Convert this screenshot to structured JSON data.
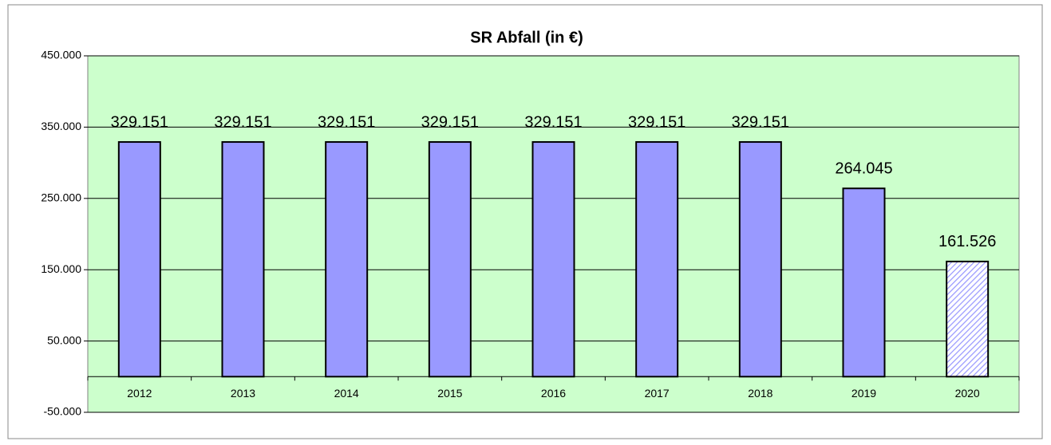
{
  "chart_data": {
    "type": "bar",
    "title": "SR Abfall  (in €)",
    "categories": [
      "2012",
      "2013",
      "2014",
      "2015",
      "2016",
      "2017",
      "2018",
      "2019",
      "2020"
    ],
    "values": [
      329151,
      329151,
      329151,
      329151,
      329151,
      329151,
      329151,
      264045,
      161526
    ],
    "value_labels": [
      "329.151",
      "329.151",
      "329.151",
      "329.151",
      "329.151",
      "329.151",
      "329.151",
      "264.045",
      "161.526"
    ],
    "hatch": [
      false,
      false,
      false,
      false,
      false,
      false,
      false,
      false,
      true
    ],
    "color": "#9999ff",
    "background": "#ccffcc",
    "ylim": [
      -50000,
      450000
    ],
    "yticks": [
      {
        "value": -50000,
        "label": "-50.000"
      },
      {
        "value": 50000,
        "label": "50.000"
      },
      {
        "value": 150000,
        "label": "150.000"
      },
      {
        "value": 250000,
        "label": "250.000"
      },
      {
        "value": 350000,
        "label": "350.000"
      },
      {
        "value": 450000,
        "label": "450.000"
      }
    ],
    "grid": true
  }
}
